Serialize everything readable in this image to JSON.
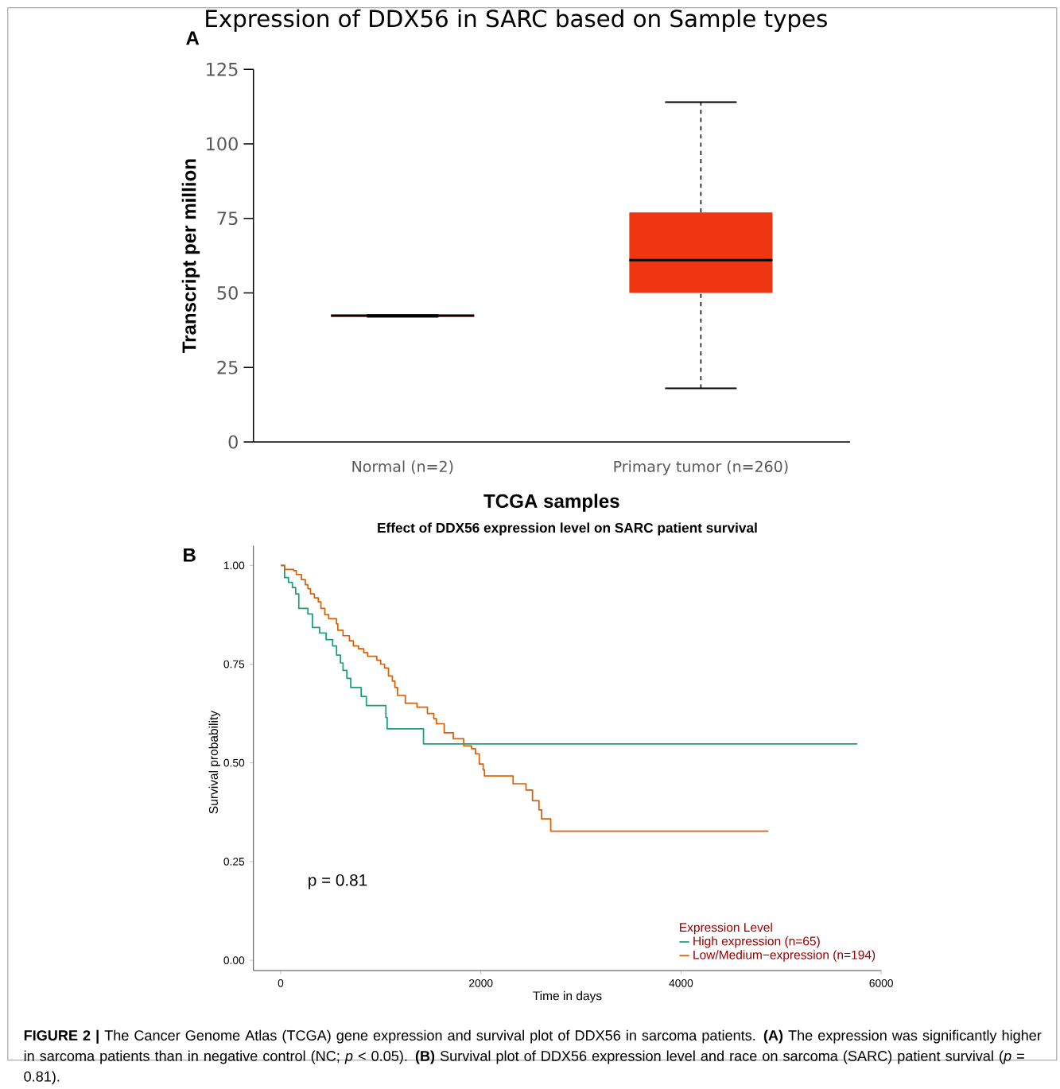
{
  "chart_data": [
    {
      "type": "box",
      "title": "Expression of DDX56 in SARC based on Sample types",
      "xlabel": "TCGA samples",
      "ylabel": "Transcript per million",
      "categories": [
        "Normal (n=2)",
        "Primary tumor (n=260)"
      ],
      "boxes": [
        {
          "low": 42,
          "q1": 42,
          "median": 42.4,
          "q3": 42.6,
          "high": 42.6
        },
        {
          "low": 18,
          "q1": 50,
          "median": 61,
          "q3": 77,
          "high": 114
        }
      ],
      "colors": [
        "#f03511",
        "#f03511"
      ],
      "ylim": [
        0,
        125
      ],
      "yticks": [
        0,
        25,
        50,
        75,
        100,
        125
      ],
      "annotations": [
        "A"
      ]
    },
    {
      "type": "step",
      "title": "Effect of DDX56 expression level on SARC patient survival",
      "xlabel": "Time in days",
      "ylabel": "Survival probability",
      "legend_title": "Expression Level",
      "legend": "bottom right",
      "series": [
        {
          "name": "High expression (n=65)",
          "color": "#1b9e77",
          "x": [
            0,
            39,
            78,
            117,
            150,
            181,
            272,
            317,
            389,
            454,
            519,
            558,
            597,
            623,
            661,
            700,
            804,
            856,
            1051,
            1064,
            1427,
            5760
          ],
          "values": [
            1.0,
            0.969,
            0.957,
            0.944,
            0.928,
            0.891,
            0.877,
            0.843,
            0.829,
            0.812,
            0.796,
            0.773,
            0.753,
            0.734,
            0.714,
            0.691,
            0.668,
            0.645,
            0.615,
            0.586,
            0.548,
            0.548
          ]
        },
        {
          "name": "Low/Medium−expression (n=194)",
          "color": "#d95f02",
          "x": [
            0,
            39,
            130,
            156,
            208,
            246,
            272,
            298,
            337,
            376,
            402,
            441,
            480,
            558,
            571,
            623,
            687,
            726,
            778,
            830,
            869,
            960,
            999,
            1038,
            1077,
            1116,
            1141,
            1167,
            1245,
            1362,
            1466,
            1530,
            1556,
            1634,
            1725,
            1829,
            1907,
            1946,
            1984,
            2023,
            2036,
            2322,
            2451,
            2516,
            2581,
            2607,
            2698,
            4872
          ],
          "values": [
            1.0,
            0.99,
            0.987,
            0.977,
            0.964,
            0.951,
            0.941,
            0.928,
            0.918,
            0.908,
            0.891,
            0.875,
            0.865,
            0.852,
            0.836,
            0.822,
            0.809,
            0.796,
            0.789,
            0.779,
            0.77,
            0.76,
            0.75,
            0.74,
            0.72,
            0.707,
            0.691,
            0.671,
            0.651,
            0.641,
            0.625,
            0.612,
            0.599,
            0.576,
            0.561,
            0.543,
            0.536,
            0.523,
            0.497,
            0.482,
            0.467,
            0.447,
            0.431,
            0.404,
            0.381,
            0.358,
            0.327,
            0.327
          ]
        }
      ],
      "xlim": [
        -272,
        6000
      ],
      "xticks": [
        0,
        2000,
        4000,
        6000
      ],
      "ylim": [
        -0.026,
        1.05
      ],
      "yticks": [
        {
          "value": 0,
          "label": "0.00"
        },
        {
          "value": 0.25,
          "label": "0.25"
        },
        {
          "value": 0.5,
          "label": "0.50"
        },
        {
          "value": 0.75,
          "label": "0.75"
        },
        {
          "value": 1,
          "label": "1.00"
        }
      ],
      "annotations": [
        "B",
        "p = 0.81",
        "**FIGURE 2 |** The Cancer Genome Atlas (TCGA) gene expression and survival plot of DDX56 in sarcoma patients. **(A)** The expression was significantly higher in sarcoma patients than in negative control (NC; *p* < 0.05). **(B)** Survival plot of DDX56 expression level and race on sarcoma (SARC) patient survival (*p* = 0.81)."
      ]
    }
  ]
}
